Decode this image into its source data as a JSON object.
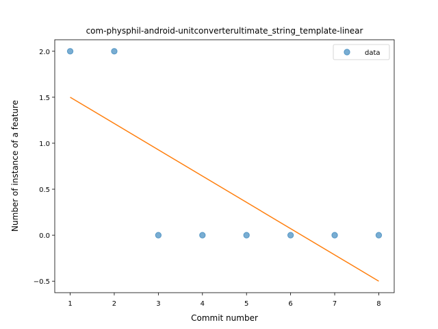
{
  "chart_data": {
    "type": "scatter",
    "title": "com-physphil-android-unitconverterultimate_string_template-linear",
    "xlabel": "Commit number",
    "ylabel": "Number of instance of a feature",
    "xlim": [
      0.65,
      8.35
    ],
    "ylim": [
      -0.625,
      2.125
    ],
    "x_ticks": [
      1,
      2,
      3,
      4,
      5,
      6,
      7,
      8
    ],
    "x_tick_labels": [
      "1",
      "2",
      "3",
      "4",
      "5",
      "6",
      "7",
      "8"
    ],
    "y_ticks": [
      -0.5,
      0.0,
      0.5,
      1.0,
      1.5,
      2.0
    ],
    "y_tick_labels": [
      "−0.5",
      "0.0",
      "0.5",
      "1.0",
      "1.5",
      "2.0"
    ],
    "grid": false,
    "legend_position": "top-right",
    "series": [
      {
        "name": "data",
        "kind": "scatter",
        "color": "#1f77b4",
        "x": [
          1,
          2,
          3,
          4,
          5,
          6,
          7,
          8
        ],
        "y": [
          2,
          2,
          0,
          0,
          0,
          0,
          0,
          0
        ]
      },
      {
        "kind": "line",
        "color": "#ff7f0e",
        "x": [
          1,
          8
        ],
        "y": [
          1.5,
          -0.5
        ]
      }
    ]
  }
}
